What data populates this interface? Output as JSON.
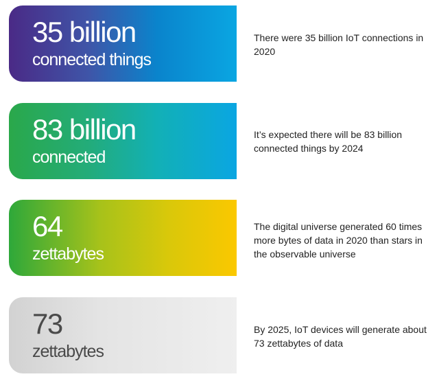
{
  "stats": [
    {
      "value": "35 billion",
      "unit": "connected things",
      "description": "There were 35 billion IoT connections in 2020"
    },
    {
      "value": "83 billion",
      "unit": "connected",
      "description": "It’s expected there will be 83 billion connected things by 2024"
    },
    {
      "value": "64",
      "unit": "zettabytes",
      "description": "The digital universe generated 60 times more bytes of data in 2020 than stars in the observable universe"
    },
    {
      "value": "73",
      "unit": "zettabytes",
      "description": "By 2025, IoT devices will generate about 73 zettabytes of data"
    }
  ]
}
